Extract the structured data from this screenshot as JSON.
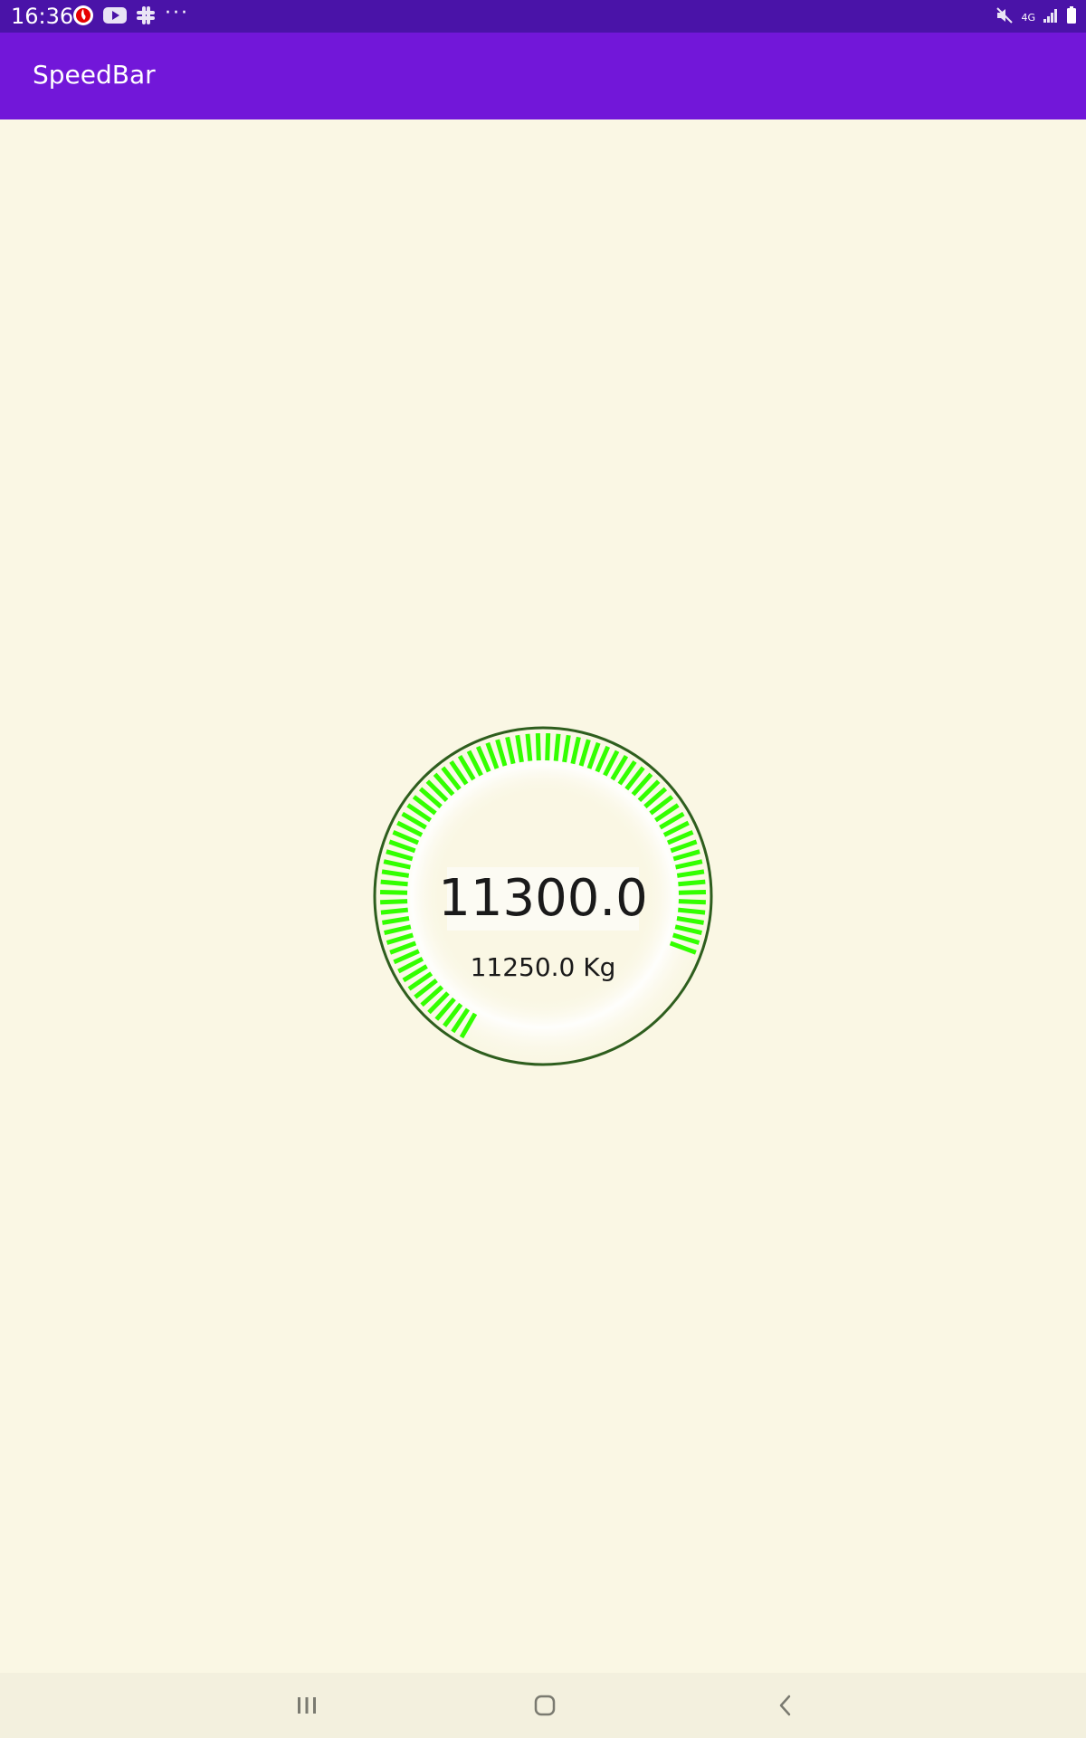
{
  "status_bar": {
    "time": "16:36",
    "left_icons": [
      "vodafone-icon",
      "youtube-icon",
      "slack-icon",
      "more-notifications-icon"
    ],
    "network_label": "4G",
    "right_icons": [
      "mute-icon",
      "network-4g-icon",
      "signal-icon",
      "battery-icon"
    ],
    "color": "#4A13A8"
  },
  "app_bar": {
    "title": "SpeedBar",
    "color": "#7217D9"
  },
  "gauge": {
    "value_text": "11300.0",
    "subtitle": "11250.0 Kg",
    "fill_fraction": 0.865,
    "normal_color": "#33FF00",
    "warning_color": "#FFFF00",
    "ring_color": "#2E5E1E"
  },
  "nav_bar": {
    "buttons": [
      "recent-apps-icon",
      "home-icon",
      "back-icon"
    ]
  }
}
